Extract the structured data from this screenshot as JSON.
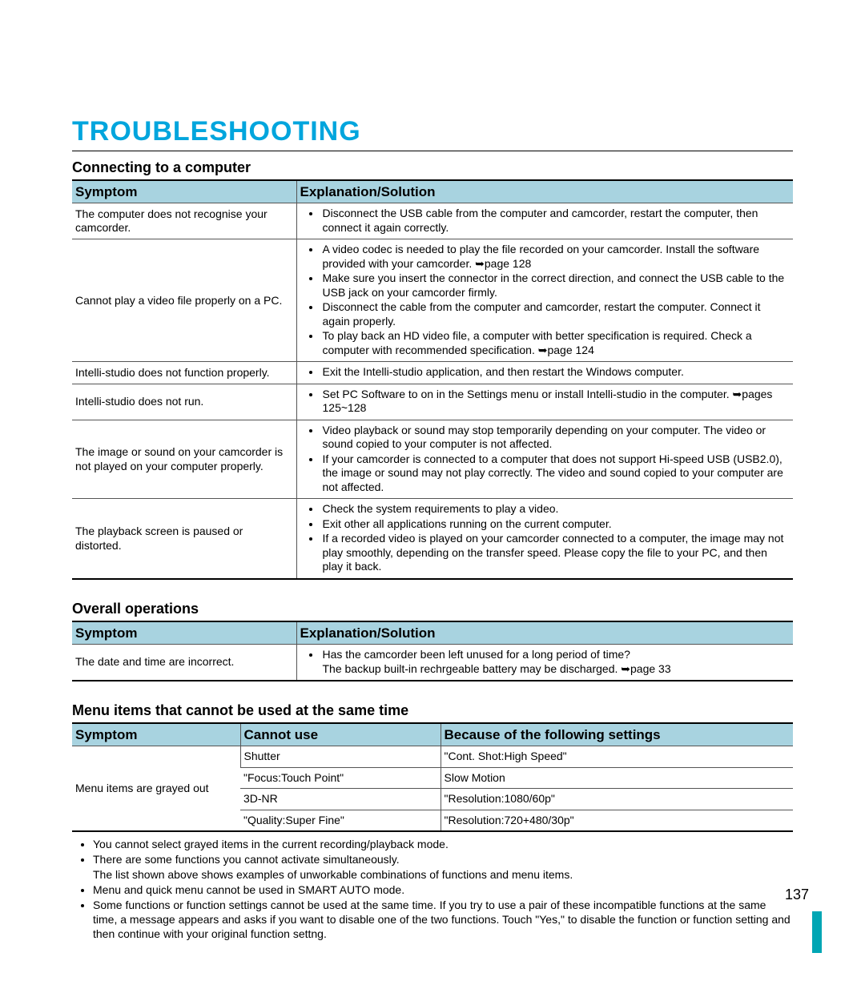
{
  "colors": {
    "title": "#00a5dd",
    "header_bg": "#a8d3e0",
    "footer_bar": "#00a6b4"
  },
  "page": {
    "title": "TROUBLESHOOTING",
    "number": "137"
  },
  "section1": {
    "heading": "Connecting to a computer",
    "col_symptom": "Symptom",
    "col_explanation": "Explanation/Solution",
    "rows": [
      {
        "symptom": "The computer does not recognise your camcorder.",
        "items": [
          "Disconnect the USB cable from the computer and camcorder, restart the computer, then connect it again correctly."
        ]
      },
      {
        "symptom": "Cannot play a video file properly on a PC.",
        "items": [
          "A video codec is needed to play the file recorded on your camcorder. Install the software provided with your camcorder. ➥page 128",
          "Make sure you insert the connector in the correct direction, and connect the USB cable to the USB jack on your camcorder firmly.",
          "Disconnect the cable from the computer and camcorder, restart the computer. Connect it again properly.",
          "To play back an HD video file, a computer with better specification is required. Check a computer with recommended specification. ➥page 124"
        ]
      },
      {
        "symptom": "Intelli-studio does not function properly.",
        "items": [
          "Exit the Intelli-studio application, and then restart the Windows computer."
        ]
      },
      {
        "symptom": "Intelli-studio does not run.",
        "items": [
          "Set PC Software to on in the Settings menu or install Intelli-studio in the computer. ➥pages 125~128"
        ]
      },
      {
        "symptom": "The image or sound on your camcorder is not played on your computer properly.",
        "items": [
          "Video playback or sound may stop temporarily depending on your computer. The video or sound copied to your computer is not affected.",
          "If your camcorder is connected to a computer that does not support Hi-speed USB (USB2.0), the image or sound may not play correctly. The video and sound copied to your computer are not affected."
        ]
      },
      {
        "symptom": "The playback screen is paused or distorted.",
        "items": [
          "Check the system requirements to play a video.",
          "Exit other all applications running on the current computer.",
          "If a recorded video is played on your camcorder connected to a computer, the image may not play smoothly, depending on the transfer speed. Please copy the file to your PC, and then play it back."
        ]
      }
    ]
  },
  "section2": {
    "heading": "Overall operations",
    "col_symptom": "Symptom",
    "col_explanation": "Explanation/Solution",
    "rows": [
      {
        "symptom": "The date and time are incorrect.",
        "items": [
          "Has the camcorder been left unused for a long period of time?\nThe backup built-in rechrgeable battery may be discharged. ➥page 33"
        ]
      }
    ]
  },
  "section3": {
    "heading": "Menu items that cannot be used at the same time",
    "col_symptom": "Symptom",
    "col_cannot": "Cannot use",
    "col_because": "Because of the following settings",
    "symptom_cell": "Menu items are grayed out",
    "rows": [
      {
        "cannot": "Shutter",
        "because": "\"Cont. Shot:High Speed\""
      },
      {
        "cannot": "\"Focus:Touch Point\"",
        "because": "Slow Motion"
      },
      {
        "cannot": "3D-NR",
        "because": "\"Resolution:1080/60p\""
      },
      {
        "cannot": "\"Quality:Super Fine\"",
        "because": "\"Resolution:720+480/30p\""
      }
    ],
    "notes": [
      "You cannot select grayed items in the current recording/playback mode.",
      "There are some functions you cannot activate simultaneously.\nThe list shown above shows examples of unworkable combinations of functions and menu items.",
      "Menu and quick menu cannot be used in SMART AUTO mode.",
      "Some functions or function settings cannot be used at the same time. If you try to use a pair of these incompatible functions at the same time, a message appears and asks if you want to disable one of the two functions. Touch \"Yes,\" to disable the function or function setting and then continue with your original function settng."
    ]
  }
}
